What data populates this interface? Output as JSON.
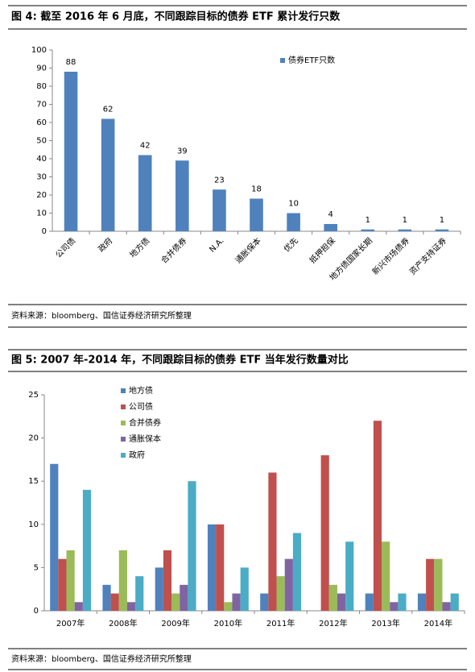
{
  "chart_data": [
    {
      "type": "bar",
      "title": "图 4: 截至 2016 年 6 月底，不同跟踪目标的债券 ETF 累计发行只数",
      "source": "资料来源：bloomberg、国信证券经济研究所整理",
      "categories": [
        "公司债",
        "政府",
        "地方债",
        "合并债券",
        "N.A.",
        "通胀保本",
        "优先",
        "抵押担保",
        "地方债国家长期",
        "新兴市场债券",
        "资产支持证券"
      ],
      "series": [
        {
          "name": "债券ETF只数",
          "color": "#4f81bd",
          "values": [
            88,
            62,
            42,
            39,
            23,
            18,
            10,
            4,
            1,
            1,
            1
          ]
        }
      ],
      "show_values": true,
      "ylim": [
        0,
        100
      ],
      "yticks": [
        0,
        10,
        20,
        30,
        40,
        50,
        60,
        70,
        80,
        90,
        100
      ],
      "grid": false
    },
    {
      "type": "bar",
      "title": "图 5: 2007 年-2014 年，不同跟踪目标的债券 ETF 当年发行数量对比",
      "source": "资料来源：bloomberg、国信证券经济研究所整理",
      "categories": [
        "2007年",
        "2008年",
        "2009年",
        "2010年",
        "2011年",
        "2012年",
        "2013年",
        "2014年"
      ],
      "series": [
        {
          "name": "地方债",
          "color": "#4f81bd",
          "values": [
            17,
            3,
            5,
            10,
            2,
            0,
            2,
            2
          ]
        },
        {
          "name": "公司债",
          "color": "#c0504d",
          "values": [
            6,
            2,
            7,
            10,
            16,
            18,
            22,
            6
          ]
        },
        {
          "name": "合并债券",
          "color": "#9bbb59",
          "values": [
            7,
            7,
            2,
            1,
            4,
            3,
            8,
            6
          ]
        },
        {
          "name": "通胀保本",
          "color": "#8064a2",
          "values": [
            1,
            1,
            3,
            2,
            6,
            2,
            1,
            1
          ]
        },
        {
          "name": "政府",
          "color": "#4bacc6",
          "values": [
            14,
            4,
            15,
            5,
            9,
            8,
            2,
            2
          ]
        }
      ],
      "show_values": false,
      "ylim": [
        0,
        25
      ],
      "yticks": [
        0,
        5,
        10,
        15,
        20,
        25
      ],
      "grid": false
    }
  ]
}
